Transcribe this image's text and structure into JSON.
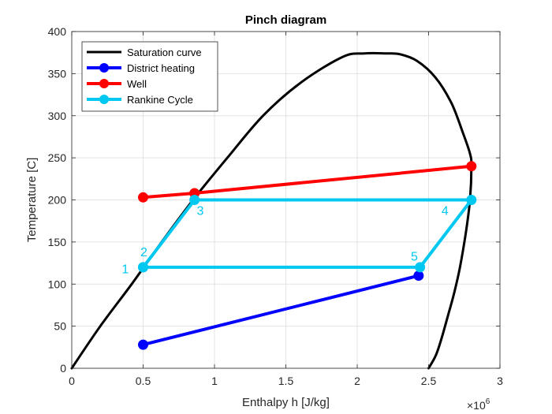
{
  "chart_data": {
    "type": "line",
    "title": "Pinch diagram",
    "xlabel": "Enthalpy h [J/kg]",
    "ylabel": "Temperature [C]",
    "x_exponent_label": "×10",
    "x_exponent_power": "6",
    "xlim": [
      0,
      3000000
    ],
    "ylim": [
      0,
      400
    ],
    "x_ticks": [
      0,
      500000,
      1000000,
      1500000,
      2000000,
      2500000,
      3000000
    ],
    "x_tick_labels": [
      "0",
      "0.5",
      "1",
      "1.5",
      "2",
      "2.5",
      "3"
    ],
    "y_ticks": [
      0,
      50,
      100,
      150,
      200,
      250,
      300,
      350,
      400
    ],
    "y_tick_labels": [
      "0",
      "50",
      "100",
      "150",
      "200",
      "250",
      "300",
      "350",
      "400"
    ],
    "grid": true,
    "legend_position": "top-left",
    "series": [
      {
        "name": "Saturation curve",
        "color": "#000000",
        "markers": false,
        "x": [
          0,
          200000,
          420000,
          630000,
          850000,
          1090000,
          1340000,
          1610000,
          1900000,
          2050000,
          2200000,
          2300000,
          2420000,
          2550000,
          2660000,
          2740000,
          2790000,
          2800000,
          2790000,
          2760000,
          2720000,
          2680000,
          2640000,
          2590000,
          2550000,
          2500000
        ],
        "y": [
          0,
          50,
          100,
          150,
          200,
          250,
          300,
          340,
          370,
          374,
          374,
          373,
          365,
          345,
          315,
          280,
          255,
          240,
          200,
          160,
          120,
          90,
          65,
          35,
          15,
          0
        ]
      },
      {
        "name": "District heating",
        "color": "#0000ff",
        "markers": true,
        "x": [
          500000,
          2430000
        ],
        "y": [
          28,
          110
        ]
      },
      {
        "name": "Well",
        "color": "#ff0000",
        "markers": true,
        "x": [
          500000,
          860000,
          2800000
        ],
        "y": [
          203,
          208,
          240
        ]
      },
      {
        "name": "Rankine Cycle",
        "color": "#00c8f0",
        "markers": true,
        "x": [
          500000,
          860000,
          2800000,
          2440000,
          500000
        ],
        "y": [
          120,
          200,
          200,
          120,
          120
        ]
      }
    ],
    "annotations": [
      {
        "text": "1",
        "x": 375000,
        "y": 113,
        "color": "#00c8f0"
      },
      {
        "text": "2",
        "x": 505000,
        "y": 133,
        "color": "#00c8f0"
      },
      {
        "text": "3",
        "x": 900000,
        "y": 182,
        "color": "#00c8f0"
      },
      {
        "text": "4",
        "x": 2615000,
        "y": 182,
        "color": "#00c8f0"
      },
      {
        "text": "5",
        "x": 2400000,
        "y": 128,
        "color": "#00c8f0"
      }
    ]
  }
}
